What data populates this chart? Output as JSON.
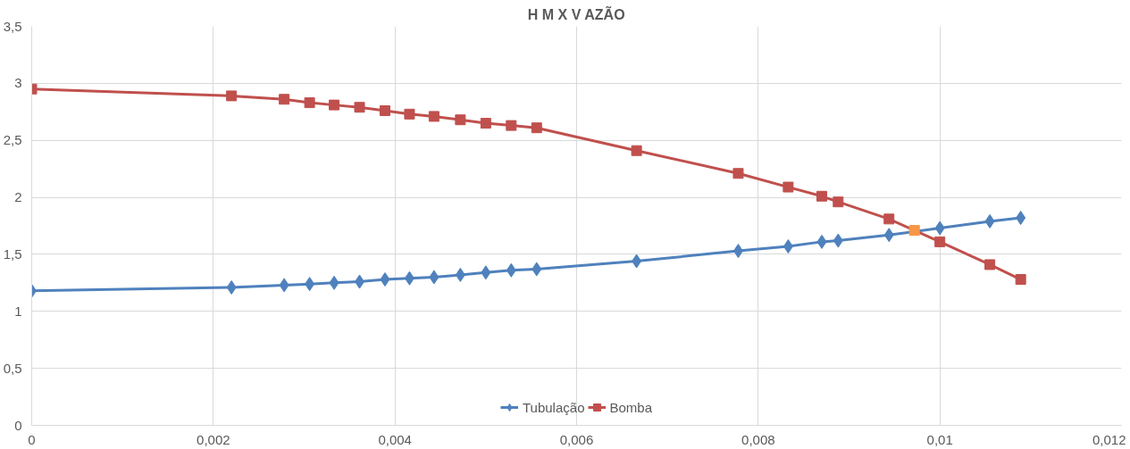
{
  "chart_data": {
    "type": "line",
    "title": "H M X V AZÃO",
    "x": [
      0,
      0.0022,
      0.00278,
      0.00306,
      0.00333,
      0.00361,
      0.00389,
      0.00416,
      0.00443,
      0.00472,
      0.005,
      0.00528,
      0.00556,
      0.00666,
      0.00778,
      0.00833,
      0.0087,
      0.00888,
      0.00944,
      0.00972,
      0.01,
      0.01055,
      0.01089
    ],
    "series": [
      {
        "name": "Tubulação",
        "color": "#4f81bd",
        "marker": "diamond",
        "values": [
          1.18,
          1.21,
          1.23,
          1.24,
          1.25,
          1.26,
          1.28,
          1.29,
          1.3,
          1.32,
          1.34,
          1.36,
          1.37,
          1.44,
          1.53,
          1.57,
          1.61,
          1.62,
          1.67,
          null,
          1.73,
          1.79,
          1.82
        ]
      },
      {
        "name": "Bomba",
        "color": "#c0504d",
        "marker": "square",
        "colors": [
          "#c0504d",
          "#c0504d",
          "#c0504d",
          "#c0504d",
          "#c0504d",
          "#c0504d",
          "#c0504d",
          "#c0504d",
          "#c0504d",
          "#c0504d",
          "#c0504d",
          "#c0504d",
          "#c0504d",
          "#c0504d",
          "#c0504d",
          "#c0504d",
          "#c0504d",
          "#c0504d",
          "#c0504d",
          "#f79646",
          "#c0504d",
          "#c0504d",
          "#c0504d"
        ],
        "values": [
          2.95,
          2.89,
          2.86,
          2.83,
          2.81,
          2.79,
          2.76,
          2.73,
          2.71,
          2.68,
          2.65,
          2.63,
          2.61,
          2.41,
          2.21,
          2.09,
          2.01,
          1.96,
          1.81,
          1.71,
          1.61,
          1.41,
          1.28
        ]
      }
    ],
    "xlim": [
      0,
      0.012
    ],
    "xticks": [
      0,
      {
        "value": 0.002,
        "label": "0,002"
      },
      {
        "value": 0.004,
        "label": "0,004"
      },
      {
        "value": 0.006,
        "label": "0,006"
      },
      {
        "value": 0.008,
        "label": "0,008"
      },
      {
        "value": 0.01,
        "label": "0,01"
      },
      {
        "value": 0.012,
        "label": "0,012"
      }
    ],
    "ylim": [
      0,
      3.5
    ],
    "yticks": [
      0,
      {
        "value": 0.5,
        "label": "0,5"
      },
      1,
      {
        "value": 1.5,
        "label": "1,5"
      },
      2,
      {
        "value": 2.5,
        "label": "2,5"
      },
      3,
      {
        "value": 3.5,
        "label": "3,5"
      }
    ],
    "grid": true,
    "legend": "bottom",
    "line_style": "solid"
  }
}
